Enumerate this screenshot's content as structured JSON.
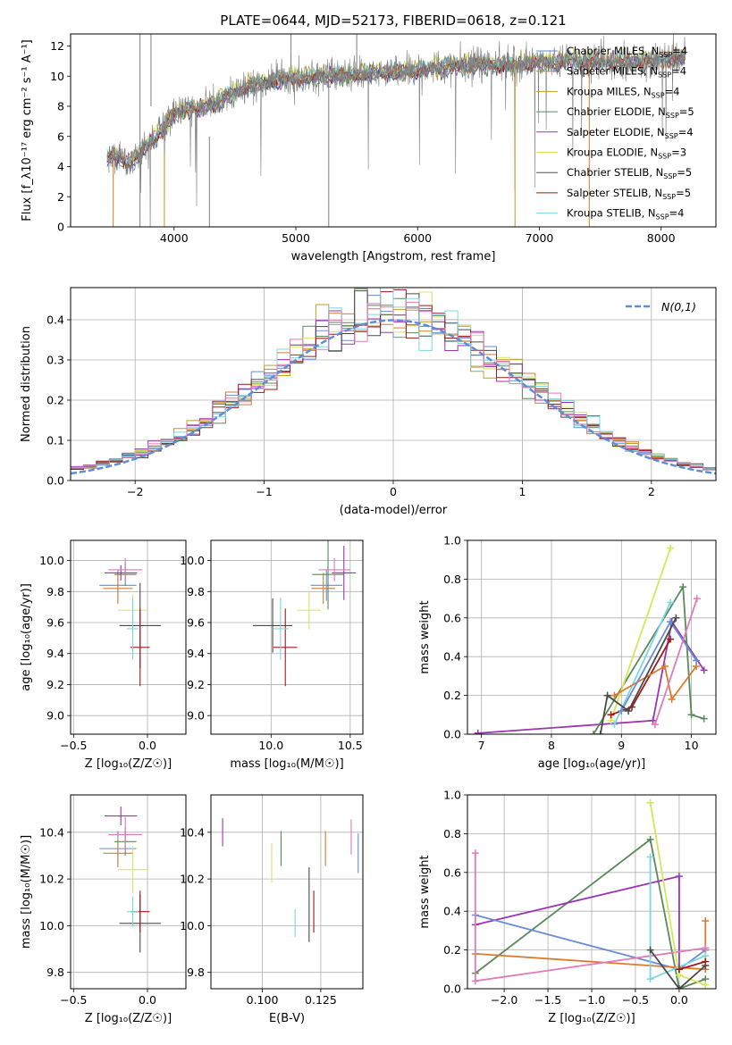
{
  "title": "PLATE=0644, MJD=52173, FIBERID=0618, z=0.121",
  "colors": {
    "Chabrier MILES": "#6a8bd6",
    "Salpeter MILES": "#d97b2c",
    "Kroupa MILES": "#c49b25",
    "Chabrier ELODIE": "#5a8a5a",
    "Salpeter ELODIE": "#9b35b0",
    "Kroupa ELODIE": "#d3e85a",
    "Chabrier STELIB": "#4a4a4a",
    "Salpeter STELIB": "#a11a1a",
    "Kroupa STELIB": "#7cd6e0",
    "Extra pink": "#e07ab8",
    "Normal": "#5a8fd6"
  },
  "chart_data": [
    {
      "id": "spectrum",
      "type": "line",
      "xlabel": "wavelength [Angstrom, rest frame]",
      "ylabel": "Flux [f_λ10⁻¹⁷ erg cm⁻² s⁻¹ A⁻¹]",
      "xlim": [
        3150,
        8450
      ],
      "ylim": [
        0,
        12.8
      ],
      "xticks": [
        4000,
        5000,
        6000,
        7000,
        8000
      ],
      "yticks": [
        0,
        2,
        4,
        6,
        8,
        10,
        12
      ],
      "legend_position": "top-right",
      "legend": [
        {
          "name": "Chabrier MILES",
          "sub": "N_SSP=4"
        },
        {
          "name": "Salpeter MILES",
          "sub": "N_SSP=4"
        },
        {
          "name": "Kroupa MILES",
          "sub": "N_SSP=4"
        },
        {
          "name": "Chabrier ELODIE",
          "sub": "N_SSP=5"
        },
        {
          "name": "Salpeter ELODIE",
          "sub": "N_SSP=4"
        },
        {
          "name": "Kroupa ELODIE",
          "sub": "N_SSP=3"
        },
        {
          "name": "Chabrier STELIB",
          "sub": "N_SSP=5"
        },
        {
          "name": "Salpeter STELIB",
          "sub": "N_SSP=5"
        },
        {
          "name": "Kroupa STELIB",
          "sub": "N_SSP=4"
        }
      ],
      "data_color": "#808080",
      "data_x": [
        3450,
        3500,
        3550,
        3600,
        3650,
        3700,
        3750,
        3800,
        3850,
        3900,
        3950,
        4000,
        4100,
        4200,
        4300,
        4400,
        4500,
        4600,
        4700,
        4800,
        4900,
        5000,
        5200,
        5400,
        5600,
        5800,
        6000,
        6200,
        6400,
        6600,
        6800,
        7000,
        7200,
        7400,
        7600,
        7800,
        8000,
        8200
      ],
      "data_y": [
        4.5,
        4.8,
        4.6,
        4.3,
        4.5,
        4.7,
        5.2,
        5.6,
        6.0,
        6.5,
        7.0,
        7.4,
        7.8,
        7.9,
        8.1,
        8.5,
        8.9,
        9.3,
        9.5,
        9.7,
        9.8,
        9.9,
        10.0,
        10.1,
        10.2,
        10.3,
        10.4,
        10.6,
        10.7,
        10.8,
        10.8,
        10.9,
        11.0,
        11.0,
        10.9,
        11.0,
        11.1,
        11.2
      ]
    },
    {
      "id": "residuals",
      "type": "histogram",
      "xlabel": "(data-model)/error",
      "ylabel": "Normed distribution",
      "xlim": [
        -2.5,
        2.5
      ],
      "ylim": [
        0,
        0.48
      ],
      "xticks": [
        -2,
        -1,
        0,
        1,
        2
      ],
      "yticks": [
        0.0,
        0.1,
        0.2,
        0.3,
        0.4
      ],
      "legend": [
        "N(0,1)"
      ],
      "legend_position": "top-right",
      "bin_width": 0.1,
      "bin_start": -2.5
    },
    {
      "id": "age-vs-Z",
      "type": "errorbar",
      "xlabel": "Z [log₁₀(Z/Z☉)]",
      "ylabel": "age [log₁₀(age/yr)]",
      "xlim": [
        -0.52,
        0.26
      ],
      "ylim": [
        8.88,
        10.13
      ],
      "xticks": [
        -0.5,
        0.0
      ],
      "yticks": [
        9.0,
        9.2,
        9.4,
        9.6,
        9.8,
        10.0
      ],
      "points": [
        {
          "c": "Chabrier MILES",
          "x": -0.2,
          "xe": 0.25,
          "y": 9.84,
          "ye": 0.2
        },
        {
          "c": "Salpeter MILES",
          "x": -0.2,
          "xe": 0.2,
          "y": 9.82,
          "ye": 0.2
        },
        {
          "c": "Chabrier ELODIE",
          "x": -0.15,
          "xe": 0.15,
          "y": 9.91,
          "ye": 0.15
        },
        {
          "c": "Salpeter ELODIE",
          "x": -0.18,
          "xe": 0.22,
          "y": 9.92,
          "ye": 0.1
        },
        {
          "c": "Kroupa ELODIE",
          "x": -0.1,
          "xe": 0.2,
          "y": 9.68,
          "ye": 0.2
        },
        {
          "c": "Chabrier STELIB",
          "x": -0.05,
          "xe": 0.28,
          "y": 9.58,
          "ye": 0.55
        },
        {
          "c": "Salpeter STELIB",
          "x": -0.05,
          "xe": 0.13,
          "y": 9.44,
          "ye": 0.5
        },
        {
          "c": "Kroupa STELIB",
          "x": -0.1,
          "xe": 0.08,
          "y": 9.56,
          "ye": 0.4
        },
        {
          "c": "Extra pink",
          "x": -0.15,
          "xe": 0.23,
          "y": 9.94,
          "ye": 0.15
        }
      ]
    },
    {
      "id": "age-vs-mass",
      "type": "errorbar",
      "xlabel": "mass [log₁₀(M/M☉)]",
      "ylabel": "",
      "xlim": [
        9.62,
        10.58
      ],
      "ylim": [
        8.88,
        10.13
      ],
      "xticks": [
        10.0,
        10.5
      ],
      "yticks": [
        9.0,
        9.2,
        9.4,
        9.6,
        9.8,
        10.0
      ],
      "points": [
        {
          "c": "Chabrier MILES",
          "x": 10.35,
          "xe": 0.2,
          "y": 9.84,
          "ye": 0.2
        },
        {
          "c": "Salpeter MILES",
          "x": 10.33,
          "xe": 0.15,
          "y": 9.82,
          "ye": 0.2
        },
        {
          "c": "Chabrier ELODIE",
          "x": 10.36,
          "xe": 0.2,
          "y": 9.91,
          "ye": 0.45
        },
        {
          "c": "Salpeter ELODIE",
          "x": 10.46,
          "xe": 0.15,
          "y": 9.92,
          "ye": 0.35
        },
        {
          "c": "Kroupa ELODIE",
          "x": 10.24,
          "xe": 0.15,
          "y": 9.68,
          "ye": 0.25
        },
        {
          "c": "Chabrier STELIB",
          "x": 10.01,
          "xe": 0.25,
          "y": 9.58,
          "ye": 0.35
        },
        {
          "c": "Salpeter STELIB",
          "x": 10.09,
          "xe": 0.15,
          "y": 9.44,
          "ye": 0.5
        },
        {
          "c": "Kroupa STELIB",
          "x": 10.06,
          "xe": 0.1,
          "y": 9.56,
          "ye": 0.4
        },
        {
          "c": "Extra pink",
          "x": 10.4,
          "xe": 0.2,
          "y": 9.94,
          "ye": 0.15
        }
      ]
    },
    {
      "id": "massweight-vs-age",
      "type": "line",
      "xlabel": "age [log₁₀(age/yr)]",
      "ylabel": "mass weight",
      "xlim": [
        6.8,
        10.35
      ],
      "ylim": [
        0,
        1.0
      ],
      "xticks": [
        7,
        8,
        9,
        10
      ],
      "yticks": [
        0.0,
        0.2,
        0.4,
        0.6,
        0.8,
        1.0
      ],
      "series": [
        {
          "c": "Salpeter ELODIE",
          "x": [
            6.95,
            9.45,
            9.72,
            10.18
          ],
          "y": [
            0.005,
            0.07,
            0.58,
            0.33
          ]
        },
        {
          "c": "Chabrier ELODIE",
          "x": [
            8.6,
            9.88,
            10.0,
            10.18
          ],
          "y": [
            0.0,
            0.76,
            0.1,
            0.08
          ]
        },
        {
          "c": "Kroupa ELODIE",
          "x": [
            8.85,
            9.7
          ],
          "y": [
            0.07,
            0.96
          ]
        },
        {
          "c": "Salpeter STELIB",
          "x": [
            8.85,
            9.15,
            9.7
          ],
          "y": [
            0.1,
            0.14,
            0.49
          ]
        },
        {
          "c": "Kroupa STELIB",
          "x": [
            8.9,
            9.7
          ],
          "y": [
            0.05,
            0.68
          ]
        },
        {
          "c": "Salpeter MILES",
          "x": [
            8.9,
            9.62,
            9.72,
            10.07
          ],
          "y": [
            0.2,
            0.35,
            0.18,
            0.35
          ]
        },
        {
          "c": "Chabrier MILES",
          "x": [
            9.0,
            9.7,
            10.07
          ],
          "y": [
            0.12,
            0.58,
            0.38
          ]
        },
        {
          "c": "Chabrier STELIB",
          "x": [
            8.7,
            8.8,
            9.1,
            9.78
          ],
          "y": [
            0.0,
            0.2,
            0.12,
            0.6
          ]
        },
        {
          "c": "Extra pink",
          "x": [
            9.48,
            10.08
          ],
          "y": [
            0.05,
            0.7
          ]
        }
      ]
    },
    {
      "id": "mass-vs-Z",
      "type": "errorbar",
      "xlabel": "Z [log₁₀(Z/Z☉)]",
      "ylabel": "mass [log₁₀(M/M☉)]",
      "xlim": [
        -0.52,
        0.26
      ],
      "ylim": [
        9.73,
        10.56
      ],
      "xticks": [
        -0.5,
        0.0
      ],
      "yticks": [
        9.8,
        10.0,
        10.2,
        10.4
      ],
      "points": [
        {
          "c": "Chabrier MILES",
          "x": -0.2,
          "xe": 0.25,
          "y": 10.33,
          "ye": 0.15
        },
        {
          "c": "Salpeter MILES",
          "x": -0.2,
          "xe": 0.2,
          "y": 10.31,
          "ye": 0.12
        },
        {
          "c": "Chabrier ELODIE",
          "x": -0.15,
          "xe": 0.15,
          "y": 10.36,
          "ye": 0.12
        },
        {
          "c": "Salpeter ELODIE",
          "x": -0.18,
          "xe": 0.22,
          "y": 10.47,
          "ye": 0.08
        },
        {
          "c": "Kroupa ELODIE",
          "x": -0.1,
          "xe": 0.2,
          "y": 10.24,
          "ye": 0.2
        },
        {
          "c": "Chabrier STELIB",
          "x": -0.05,
          "xe": 0.28,
          "y": 10.01,
          "ye": 0.25
        },
        {
          "c": "Salpeter STELIB",
          "x": -0.05,
          "xe": 0.13,
          "y": 10.06,
          "ye": 0.18
        },
        {
          "c": "Kroupa STELIB",
          "x": -0.1,
          "xe": 0.08,
          "y": 10.06,
          "ye": 0.13
        },
        {
          "c": "Extra pink",
          "x": -0.15,
          "xe": 0.23,
          "y": 10.39,
          "ye": 0.15
        }
      ]
    },
    {
      "id": "mass-vs-EBV",
      "type": "errorbar",
      "xlabel": "E(B-V)",
      "ylabel": "",
      "xlim": [
        0.078,
        0.143
      ],
      "ylim": [
        9.73,
        10.56
      ],
      "xticks": [
        0.1,
        0.125
      ],
      "yticks": [
        9.8,
        10.0,
        10.2,
        10.4
      ],
      "points": [
        {
          "c": "Salpeter ELODIE",
          "x": 0.083,
          "y": 10.4,
          "ye": 0.12
        },
        {
          "c": "Kroupa ELODIE",
          "x": 0.104,
          "y": 10.27,
          "ye": 0.17
        },
        {
          "c": "Chabrier ELODIE",
          "x": 0.108,
          "y": 10.33,
          "ye": 0.15
        },
        {
          "c": "Kroupa STELIB",
          "x": 0.114,
          "y": 10.01,
          "ye": 0.12
        },
        {
          "c": "Chabrier STELIB",
          "x": 0.12,
          "y": 10.09,
          "ye": 0.32
        },
        {
          "c": "Salpeter STELIB",
          "x": 0.122,
          "y": 10.06,
          "ye": 0.18
        },
        {
          "c": "Salpeter MILES",
          "x": 0.127,
          "y": 10.33,
          "ye": 0.15
        },
        {
          "c": "Extra pink",
          "x": 0.138,
          "y": 10.38,
          "ye": 0.15
        },
        {
          "c": "Chabrier MILES",
          "x": 0.141,
          "y": 10.31,
          "ye": 0.17
        }
      ]
    },
    {
      "id": "massweight-vs-Z",
      "type": "line",
      "xlabel": "Z [log₁₀(Z/Z☉)]",
      "ylabel": "mass weight",
      "xlim": [
        -2.42,
        0.42
      ],
      "ylim": [
        0,
        1.0
      ],
      "xticks": [
        -2.0,
        -1.5,
        -1.0,
        -0.5,
        0.0
      ],
      "yticks": [
        0.0,
        0.2,
        0.4,
        0.6,
        0.8,
        1.0
      ],
      "series": [
        {
          "c": "Chabrier ELODIE",
          "x": [
            -2.33,
            -0.33,
            0.0,
            0.3
          ],
          "y": [
            0.08,
            0.77,
            0.0,
            0.05
          ]
        },
        {
          "c": "Salpeter ELODIE",
          "x": [
            -2.33,
            0.0,
            0.0
          ],
          "y": [
            0.33,
            0.58,
            0.1
          ]
        },
        {
          "c": "Chabrier MILES",
          "x": [
            -2.33,
            0.0,
            0.3
          ],
          "y": [
            0.38,
            0.1,
            0.2
          ]
        },
        {
          "c": "Salpeter MILES",
          "x": [
            -2.33,
            0.3,
            0.3
          ],
          "y": [
            0.18,
            0.1,
            0.35
          ]
        },
        {
          "c": "Extra pink",
          "x": [
            -2.33,
            -2.33,
            0.3
          ],
          "y": [
            0.7,
            0.04,
            0.21
          ]
        },
        {
          "c": "Kroupa ELODIE",
          "x": [
            -0.33,
            0.0,
            0.3
          ],
          "y": [
            0.96,
            0.07,
            0.02
          ]
        },
        {
          "c": "Kroupa STELIB",
          "x": [
            -0.33,
            -0.33,
            0.3
          ],
          "y": [
            0.68,
            0.05,
            0.17
          ]
        },
        {
          "c": "Salpeter STELIB",
          "x": [
            0.0,
            0.3
          ],
          "y": [
            0.1,
            0.14
          ]
        },
        {
          "c": "Chabrier STELIB",
          "x": [
            -0.33,
            0.0,
            0.3
          ],
          "y": [
            0.2,
            0.0,
            0.12
          ]
        }
      ]
    }
  ]
}
